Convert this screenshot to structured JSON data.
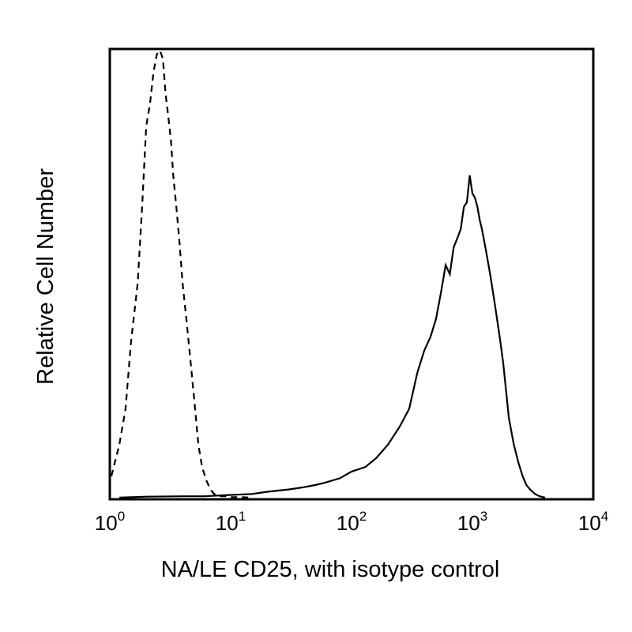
{
  "chart_data": {
    "type": "line",
    "title": "",
    "xlabel": "NA/LE CD25, with isotype control",
    "ylabel": "Relative Cell Number",
    "x_scale": "log",
    "xlim": [
      1,
      10000
    ],
    "ylim": [
      0,
      1
    ],
    "grid": false,
    "x_ticks": [
      {
        "value": 1,
        "base": "10",
        "exp": "0"
      },
      {
        "value": 10,
        "base": "10",
        "exp": "1"
      },
      {
        "value": 100,
        "base": "10",
        "exp": "2"
      },
      {
        "value": 1000,
        "base": "10",
        "exp": "3"
      },
      {
        "value": 10000,
        "base": "10",
        "exp": "4"
      }
    ],
    "series": [
      {
        "style": "dashed",
        "color": "#000000",
        "x": [
          1,
          1.1,
          1.2,
          1.35,
          1.5,
          1.7,
          1.85,
          2.0,
          2.15,
          2.3,
          2.45,
          2.6,
          2.75,
          2.9,
          3.05,
          3.2,
          3.35,
          3.55,
          3.75,
          4.0,
          4.3,
          4.6,
          5.0,
          5.4,
          5.8,
          6.3,
          6.8,
          7.3,
          8,
          9,
          10,
          12,
          15
        ],
        "y": [
          0.05,
          0.08,
          0.12,
          0.2,
          0.35,
          0.48,
          0.65,
          0.83,
          0.88,
          0.95,
          0.99,
          1.0,
          0.98,
          0.9,
          0.85,
          0.8,
          0.72,
          0.65,
          0.58,
          0.48,
          0.4,
          0.32,
          0.22,
          0.12,
          0.07,
          0.04,
          0.02,
          0.01,
          0.005,
          0.005,
          0.003,
          0.003,
          0.002
        ]
      },
      {
        "style": "solid",
        "color": "#000000",
        "x": [
          1.2,
          2,
          4,
          6,
          10,
          15,
          20,
          30,
          40,
          50,
          60,
          80,
          100,
          130,
          160,
          200,
          250,
          300,
          350,
          400,
          450,
          500,
          550,
          600,
          650,
          700,
          750,
          800,
          850,
          900,
          950,
          1000,
          1050,
          1100,
          1150,
          1200,
          1300,
          1400,
          1500,
          1600,
          1700,
          1800,
          1900,
          2000,
          2200,
          2400,
          2600,
          2800,
          3000,
          3300,
          3600,
          4000
        ],
        "y": [
          0.002,
          0.004,
          0.005,
          0.005,
          0.008,
          0.01,
          0.015,
          0.02,
          0.025,
          0.03,
          0.035,
          0.045,
          0.06,
          0.07,
          0.09,
          0.12,
          0.16,
          0.2,
          0.28,
          0.33,
          0.36,
          0.4,
          0.46,
          0.52,
          0.5,
          0.56,
          0.58,
          0.6,
          0.65,
          0.66,
          0.72,
          0.68,
          0.67,
          0.65,
          0.62,
          0.6,
          0.55,
          0.5,
          0.45,
          0.4,
          0.35,
          0.3,
          0.24,
          0.18,
          0.12,
          0.08,
          0.05,
          0.03,
          0.02,
          0.01,
          0.005,
          0.002
        ]
      }
    ]
  }
}
